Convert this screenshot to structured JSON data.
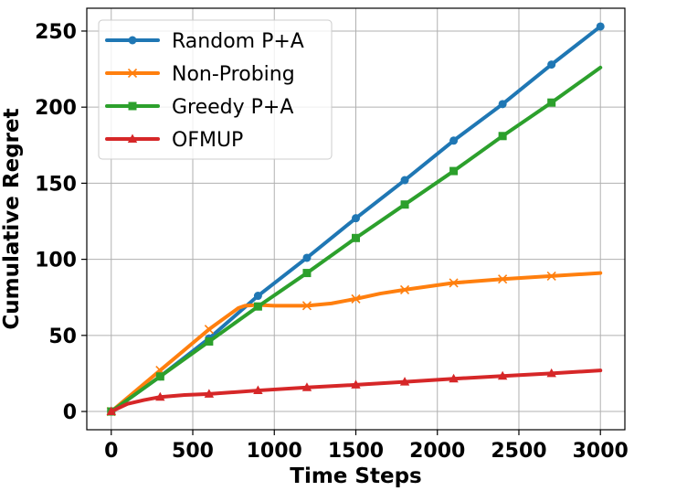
{
  "chart_data": {
    "type": "line",
    "title": "",
    "xlabel": "Time Steps",
    "ylabel": "Cumulative Regret",
    "xlim": [
      -150,
      3150
    ],
    "ylim": [
      -12,
      265
    ],
    "xticks": [
      0,
      500,
      1000,
      1500,
      2000,
      2500,
      3000
    ],
    "yticks": [
      0,
      50,
      100,
      150,
      200,
      250
    ],
    "grid": true,
    "legend_position": "upper-left",
    "series": [
      {
        "name": "Random P+A",
        "color": "#1f77b4",
        "marker": "circle",
        "markers_at": [
          0,
          300,
          600,
          900,
          1200,
          1500,
          1800,
          2100,
          2400,
          2700,
          3000
        ],
        "points": [
          [
            0,
            0
          ],
          [
            300,
            23
          ],
          [
            600,
            48
          ],
          [
            900,
            76
          ],
          [
            1200,
            101
          ],
          [
            1500,
            127
          ],
          [
            1800,
            152
          ],
          [
            2100,
            178
          ],
          [
            2400,
            202
          ],
          [
            2700,
            228
          ],
          [
            3000,
            253
          ]
        ]
      },
      {
        "name": "Non-Probing",
        "color": "#ff7f0e",
        "marker": "x",
        "markers_at": [
          0,
          300,
          600,
          1200,
          1500,
          1800,
          2100,
          2400,
          2700
        ],
        "points": [
          [
            0,
            0
          ],
          [
            300,
            27
          ],
          [
            600,
            54
          ],
          [
            780,
            68
          ],
          [
            820,
            69.5
          ],
          [
            900,
            70
          ],
          [
            1000,
            69.5
          ],
          [
            1200,
            69.5
          ],
          [
            1350,
            71
          ],
          [
            1500,
            74
          ],
          [
            1650,
            77.5
          ],
          [
            1800,
            80
          ],
          [
            2100,
            84.5
          ],
          [
            2400,
            87
          ],
          [
            2700,
            89
          ],
          [
            3000,
            91
          ]
        ]
      },
      {
        "name": "Greedy P+A",
        "color": "#2ca02c",
        "marker": "square",
        "markers_at": [
          0,
          300,
          600,
          900,
          1200,
          1500,
          1800,
          2100,
          2400,
          2700
        ],
        "points": [
          [
            0,
            0
          ],
          [
            300,
            23
          ],
          [
            600,
            46
          ],
          [
            900,
            69
          ],
          [
            1200,
            91
          ],
          [
            1500,
            114
          ],
          [
            1800,
            136
          ],
          [
            2100,
            158
          ],
          [
            2400,
            181
          ],
          [
            2700,
            203
          ],
          [
            3000,
            226
          ]
        ]
      },
      {
        "name": "OFMUP",
        "color": "#d62728",
        "marker": "triangle",
        "markers_at": [
          0,
          300,
          600,
          900,
          1200,
          1500,
          1800,
          2100,
          2400,
          2700
        ],
        "points": [
          [
            0,
            0
          ],
          [
            100,
            5
          ],
          [
            200,
            7.5
          ],
          [
            300,
            9.5
          ],
          [
            450,
            10.8
          ],
          [
            600,
            11.5
          ],
          [
            900,
            13.8
          ],
          [
            1200,
            15.8
          ],
          [
            1500,
            17.5
          ],
          [
            1800,
            19.5
          ],
          [
            2100,
            21.5
          ],
          [
            2400,
            23.3
          ],
          [
            2700,
            25
          ],
          [
            3000,
            27
          ]
        ]
      }
    ]
  }
}
